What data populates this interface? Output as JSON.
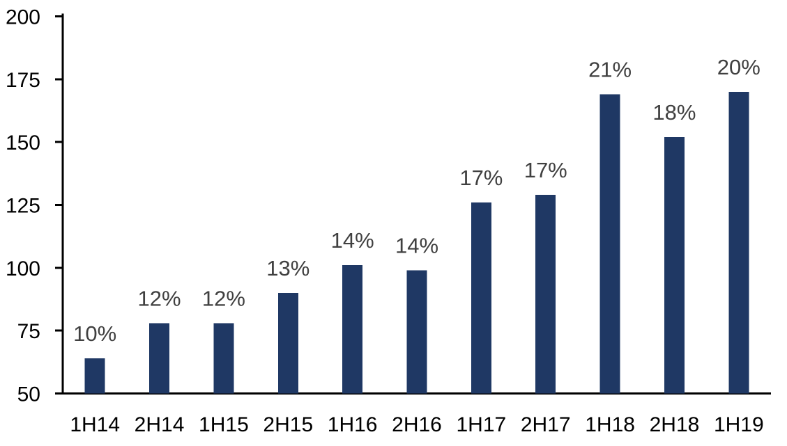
{
  "chart_data": {
    "type": "bar",
    "title": "",
    "xlabel": "",
    "ylabel": "",
    "categories": [
      "1H14",
      "2H14",
      "1H15",
      "2H15",
      "1H16",
      "2H16",
      "1H17",
      "2H17",
      "1H18",
      "2H18",
      "1H19"
    ],
    "values": [
      64,
      78,
      78,
      90,
      101,
      99,
      126,
      129,
      169,
      152,
      170
    ],
    "bar_labels": [
      "10%",
      "12%",
      "12%",
      "13%",
      "14%",
      "14%",
      "17%",
      "17%",
      "21%",
      "18%",
      "20%"
    ],
    "ylim": [
      50,
      200
    ],
    "yticks": [
      50,
      75,
      100,
      125,
      150,
      175,
      200
    ],
    "grid": false,
    "legend": null,
    "colors": {
      "bar": "#1F3864",
      "bar_label": "#404040",
      "axis": "#000000",
      "tick_label": "#000000",
      "background": "#FFFFFF"
    }
  }
}
